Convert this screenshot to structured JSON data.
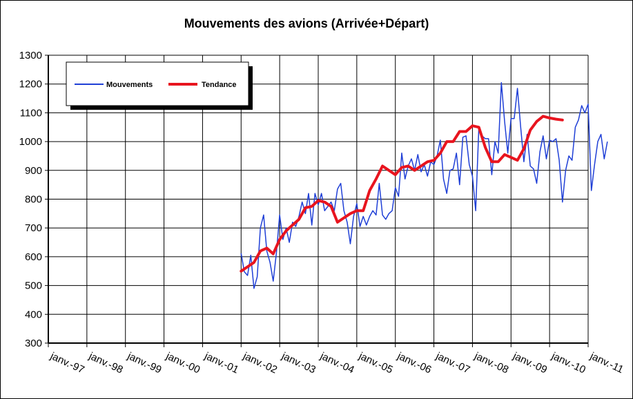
{
  "chart_data": {
    "type": "line",
    "title": "Mouvements des avions (Arrivée+Départ)",
    "xlabel": "",
    "ylabel": "",
    "ylim": [
      300,
      1300
    ],
    "yticks": [
      "300",
      "400",
      "500",
      "600",
      "700",
      "800",
      "900",
      "1000",
      "1100",
      "1200",
      "1300"
    ],
    "xticks": [
      "janv.-97",
      "janv.-98",
      "janv.-99",
      "janv.-00",
      "janv.-01",
      "janv.-02",
      "janv.-03",
      "janv.-04",
      "janv.-05",
      "janv.-06",
      "janv.-07",
      "janv.-08",
      "janv.-09",
      "janv.-10",
      "janv.-11"
    ],
    "grid": true,
    "legend_position": "top-left",
    "colors": {
      "mouvements": "#1f3fd6",
      "tendance": "#e8141e"
    },
    "series": [
      {
        "name": "Mouvements",
        "x_start": "janv.-02",
        "step": "month",
        "values": [
          612,
          548,
          535,
          605,
          490,
          530,
          700,
          745,
          620,
          580,
          515,
          615,
          745,
          660,
          700,
          650,
          720,
          705,
          740,
          790,
          750,
          820,
          710,
          820,
          780,
          820,
          760,
          775,
          790,
          760,
          835,
          855,
          760,
          720,
          645,
          740,
          785,
          705,
          740,
          710,
          740,
          760,
          745,
          855,
          745,
          730,
          750,
          760,
          840,
          810,
          960,
          870,
          915,
          940,
          900,
          955,
          895,
          920,
          880,
          930,
          920,
          950,
          1005,
          870,
          820,
          900,
          905,
          960,
          850,
          1015,
          1020,
          920,
          880,
          760,
          1050,
          1020,
          1010,
          1010,
          885,
          1000,
          960,
          1205,
          1070,
          960,
          1080,
          1080,
          1185,
          1050,
          930,
          1025,
          915,
          905,
          855,
          965,
          1020,
          940,
          1005,
          1000,
          1010,
          935,
          790,
          900,
          950,
          935,
          1050,
          1075,
          1125,
          1100,
          1130,
          830,
          920,
          1000,
          1025,
          940,
          1000
        ]
      },
      {
        "name": "Tendance",
        "points": [
          [
            "janv.-02",
            550
          ],
          [
            "mars-02",
            565
          ],
          [
            "mai-02",
            580
          ],
          [
            "juil.-02",
            620
          ],
          [
            "sept.-02",
            630
          ],
          [
            "nov.-02",
            610
          ],
          [
            "janv.-03",
            660
          ],
          [
            "mars-03",
            690
          ],
          [
            "mai-03",
            710
          ],
          [
            "juil.-03",
            730
          ],
          [
            "sept.-03",
            770
          ],
          [
            "nov.-03",
            775
          ],
          [
            "janv.-04",
            795
          ],
          [
            "mars-04",
            790
          ],
          [
            "mai-04",
            775
          ],
          [
            "juil.-04",
            720
          ],
          [
            "sept.-04",
            735
          ],
          [
            "nov.-04",
            750
          ],
          [
            "janv.-05",
            760
          ],
          [
            "mars-05",
            760
          ],
          [
            "mai-05",
            830
          ],
          [
            "juil.-05",
            870
          ],
          [
            "sept.-05",
            915
          ],
          [
            "nov.-05",
            900
          ],
          [
            "janv.-06",
            885
          ],
          [
            "mars-06",
            910
          ],
          [
            "mai-06",
            915
          ],
          [
            "juil.-06",
            900
          ],
          [
            "sept.-06",
            915
          ],
          [
            "nov.-06",
            930
          ],
          [
            "janv.-07",
            935
          ],
          [
            "mars-07",
            960
          ],
          [
            "mai-07",
            1000
          ],
          [
            "juil.-07",
            1000
          ],
          [
            "sept.-07",
            1035
          ],
          [
            "nov.-07",
            1035
          ],
          [
            "janv.-08",
            1055
          ],
          [
            "mars-08",
            1050
          ],
          [
            "mai-08",
            980
          ],
          [
            "juil.-08",
            930
          ],
          [
            "sept.-08",
            930
          ],
          [
            "nov.-08",
            955
          ],
          [
            "janv.-09",
            945
          ],
          [
            "mars-09",
            935
          ],
          [
            "mai-09",
            975
          ],
          [
            "juil.-09",
            1040
          ],
          [
            "sept.-09",
            1070
          ],
          [
            "nov.-09",
            1088
          ],
          [
            "janv.-10",
            1082
          ],
          [
            "mars-10",
            1078
          ],
          [
            "mai-10",
            1075
          ]
        ]
      }
    ]
  }
}
